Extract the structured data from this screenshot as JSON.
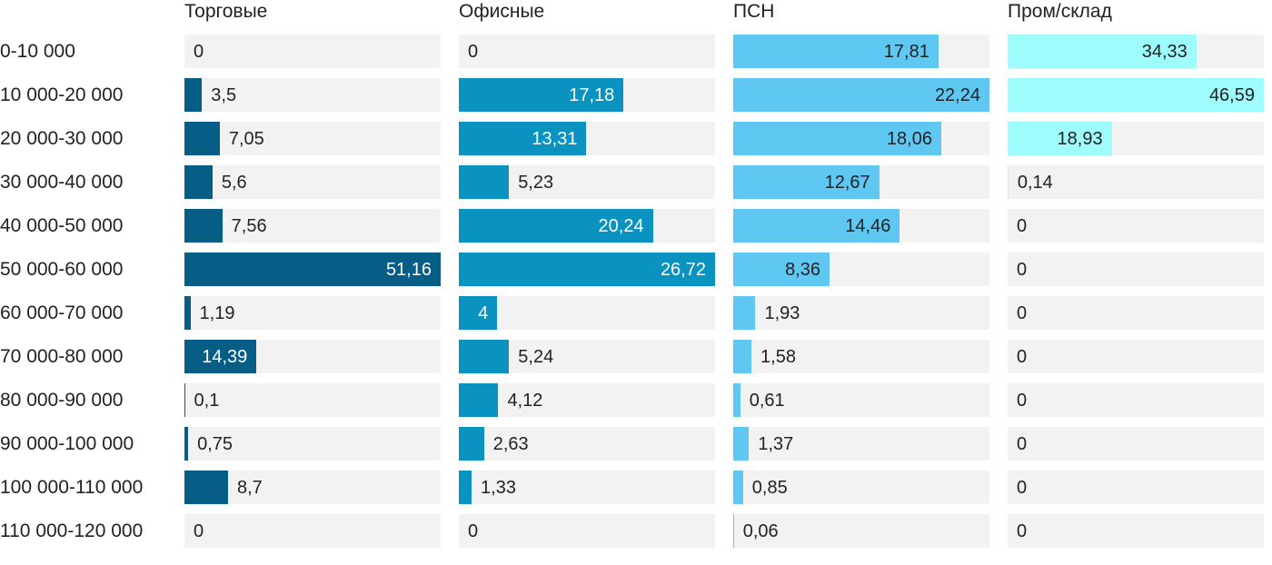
{
  "chart_data": {
    "type": "bar",
    "orientation": "horizontal",
    "title": "",
    "categories": [
      "0-10 000",
      "10 000-20 000",
      "20 000-30 000",
      "30 000-40 000",
      "40 000-50 000",
      "50 000-60 000",
      "60 000-70 000",
      "70 000-80 000",
      "80 000-90 000",
      "90 000-100 000",
      "100 000-110 000",
      "110 000-120 000"
    ],
    "series": [
      {
        "name": "Торговые",
        "color": "#065e86",
        "label_inside_color": "#ffffff",
        "values": [
          0,
          3.5,
          7.05,
          5.6,
          7.56,
          51.16,
          1.19,
          14.39,
          0.1,
          0.75,
          8.7,
          0
        ],
        "labels": [
          "0",
          "3,5",
          "7,05",
          "5,6",
          "7,56",
          "51,16",
          "1,19",
          "14,39",
          "0,1",
          "0,75",
          "8,7",
          "0"
        ]
      },
      {
        "name": "Офисные",
        "color": "#0a93c1",
        "label_inside_color": "#ffffff",
        "values": [
          0,
          17.18,
          13.31,
          5.23,
          20.24,
          26.72,
          4,
          5.24,
          4.12,
          2.63,
          1.33,
          0
        ],
        "labels": [
          "0",
          "17,18",
          "13,31",
          "5,23",
          "20,24",
          "26,72",
          "4",
          "5,24",
          "4,12",
          "2,63",
          "1,33",
          "0"
        ]
      },
      {
        "name": "ПСН",
        "color": "#5ec7f2",
        "label_inside_color": "#222222",
        "values": [
          17.81,
          22.24,
          18.06,
          12.67,
          14.46,
          8.36,
          1.93,
          1.58,
          0.61,
          1.37,
          0.85,
          0.06
        ],
        "labels": [
          "17,81",
          "22,24",
          "18,06",
          "12,67",
          "14,46",
          "8,36",
          "1,93",
          "1,58",
          "0,61",
          "1,37",
          "0,85",
          "0,06"
        ]
      },
      {
        "name": "Пром/склад",
        "color": "#9efcfc",
        "label_inside_color": "#222222",
        "values": [
          34.33,
          46.59,
          18.93,
          0.14,
          0,
          0,
          0,
          0,
          0,
          0,
          0,
          0
        ],
        "labels": [
          "34,33",
          "46,59",
          "18,93",
          "0,14",
          "0",
          "0",
          "0",
          "0",
          "0",
          "0",
          "0",
          "0"
        ]
      }
    ],
    "layout": {
      "per_series_max_scaling": true,
      "track_color": "#f2f2f2",
      "text_color": "#222222",
      "grid": false,
      "legend_position": "column-headers"
    }
  }
}
